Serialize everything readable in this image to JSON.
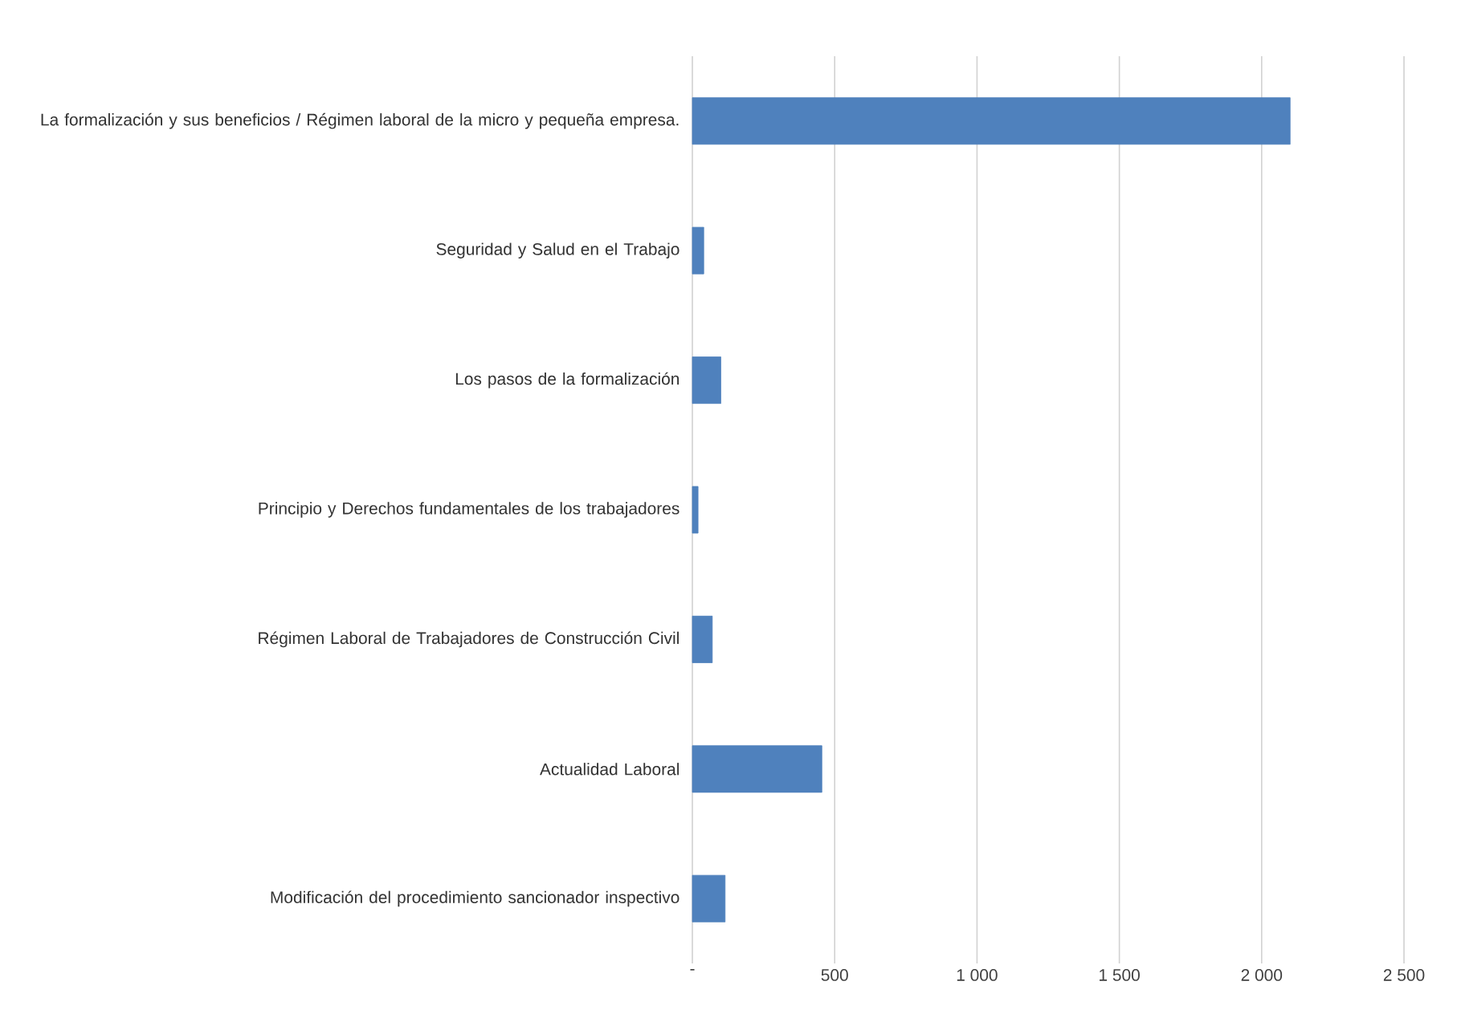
{
  "chart_data": {
    "type": "bar",
    "orientation": "horizontal",
    "categories": [
      "La formalización y sus beneficios / Régimen laboral de la micro y pequeña empresa.",
      "Seguridad y Salud en el Trabajo",
      "Los pasos de la formalización",
      "Principio y Derechos fundamentales de los trabajadores",
      "Régimen Laboral de Trabajadores de Construcción Civil",
      "Actualidad Laboral",
      "Modificación del procedimiento sancionador inspectivo"
    ],
    "values": [
      2100,
      40,
      100,
      20,
      70,
      455,
      115
    ],
    "color": "#4f81bd",
    "xlim": [
      0,
      2500
    ],
    "xticks": [
      {
        "value": 0,
        "label": "-"
      },
      500,
      {
        "value": 1000,
        "label": "1 000"
      },
      {
        "value": 1500,
        "label": "1 500"
      },
      {
        "value": 2000,
        "label": "2 000"
      },
      {
        "value": 2500,
        "label": "2 500"
      }
    ],
    "grid": "x"
  }
}
